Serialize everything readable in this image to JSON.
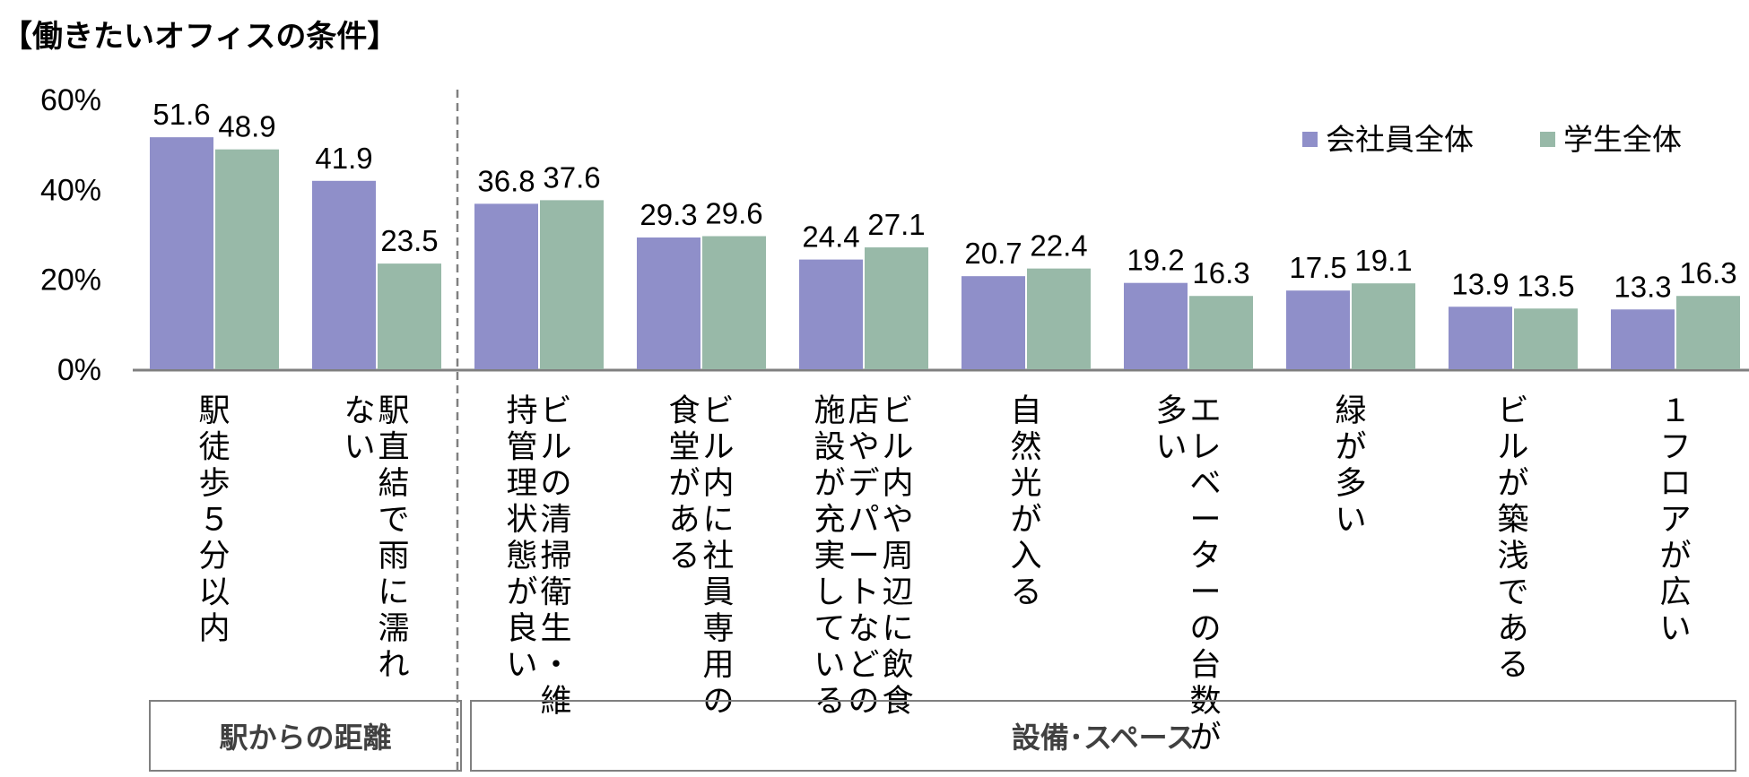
{
  "chart_data": {
    "type": "bar",
    "title": "【働きたいオフィスの条件】",
    "xlabel": "",
    "ylabel": "",
    "ylim": [
      0,
      60
    ],
    "yticks": [
      "0%",
      "20%",
      "40%",
      "60%"
    ],
    "grid": false,
    "legend_position": "top-right",
    "categories": [
      [
        "駅徒歩５分以内"
      ],
      [
        "駅直結で雨に濡れ",
        "ない"
      ],
      [
        "ビルの清掃衛生・維",
        "持管理状態が良い"
      ],
      [
        "ビル内に社員専用の",
        "食堂がある"
      ],
      [
        "ビル内や周辺に飲食",
        "店やデパートなどの",
        "施設が充実している"
      ],
      [
        "自然光が入る"
      ],
      [
        "エレベーターの台数が",
        "多い"
      ],
      [
        "緑が多い"
      ],
      [
        "ビルが築浅である"
      ],
      [
        "１フロアが広い"
      ]
    ],
    "series": [
      {
        "name": "会社員全体",
        "color": "#8f8fc9",
        "values": [
          51.6,
          41.9,
          36.8,
          29.3,
          24.4,
          20.7,
          19.2,
          17.5,
          13.9,
          13.3
        ],
        "labels": [
          "51.6",
          "41.9",
          "36.8",
          "29.3",
          "24.4",
          "20.7",
          "19.2",
          "17.5",
          "13.9",
          "13.3"
        ]
      },
      {
        "name": "学生全体",
        "color": "#98b9a8",
        "values": [
          48.9,
          23.5,
          37.6,
          29.6,
          27.1,
          22.4,
          16.3,
          19.1,
          13.5,
          16.3
        ],
        "labels": [
          "48.9",
          "23.5",
          "37.6",
          "29.6",
          "27.1",
          "22.4",
          "16.3",
          "19.1",
          "13.5",
          "16.3"
        ]
      }
    ],
    "groups": [
      {
        "label": "駅からの距離",
        "category_count": 2
      },
      {
        "label": "設備･スペース",
        "category_count": 8
      }
    ]
  }
}
